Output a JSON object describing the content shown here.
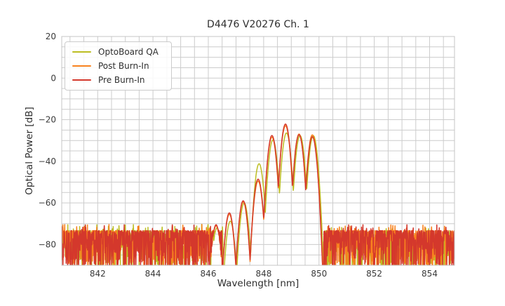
{
  "figure": {
    "background": "#ffffff",
    "text_color": "#2e2e2e",
    "grid_color": "#cccccc",
    "spine_color": "#c4c4c4"
  },
  "chart_data": {
    "type": "line",
    "title": "D4476 V20276 Ch. 1",
    "xlabel": "Wavelength [nm]",
    "ylabel": "Optical Power [dB]",
    "xlim": [
      840.7,
      854.9
    ],
    "ylim": [
      -90,
      20
    ],
    "xticks": [
      842,
      844,
      846,
      848,
      850,
      852,
      854
    ],
    "xtick_labels": [
      "842",
      "844",
      "846",
      "848",
      "850",
      "852",
      "854"
    ],
    "yticks": [
      20,
      0,
      -20,
      -40,
      -60,
      -80
    ],
    "ytick_labels": [
      "20",
      "0",
      "−20",
      "−40",
      "−60",
      "−80"
    ],
    "grid": {
      "on": true,
      "x_step": 0.5,
      "y_step": 5
    },
    "legend": {
      "position": "upper left"
    },
    "description": "Optical spectrum of a VCSEL channel: noise floor near -75 to -90 dB with longitudinal mode peaks between 846 and 850 nm; modes listed as [wavelength_nm, peak_dB].",
    "mode_width_coeff": 460,
    "mode_region": [
      846.5,
      850.16
    ],
    "noise": {
      "top": -73.3,
      "depth": 20,
      "pow": 2.2,
      "spike_prob": 0.035,
      "spike_top": -70.3,
      "step": 0.01,
      "floor_clip": -95
    },
    "series": [
      {
        "name": "OptoBoard QA",
        "color": "#bcbd22",
        "seed": 11,
        "shift": 0.035,
        "right_noise_offset": -1.4,
        "modes": [
          [
            846.28,
            -72.0
          ],
          [
            846.76,
            -68.8
          ],
          [
            847.26,
            -60.0
          ],
          [
            847.8,
            -41.2
          ],
          [
            848.3,
            -29.8
          ],
          [
            848.79,
            -26.4
          ],
          [
            849.28,
            -27.6
          ],
          [
            849.76,
            -27.7
          ]
        ]
      },
      {
        "name": "Post Burn-In",
        "color": "#f8821f",
        "seed": 22,
        "shift": 0,
        "right_noise_offset": 0,
        "modes": [
          [
            846.28,
            -71.0
          ],
          [
            846.76,
            -65.5
          ],
          [
            847.26,
            -59.5
          ],
          [
            847.8,
            -49.5
          ],
          [
            848.3,
            -28.4
          ],
          [
            848.79,
            -22.9
          ],
          [
            849.28,
            -26.9
          ],
          [
            849.76,
            -27.3
          ]
        ]
      },
      {
        "name": "Pre Burn-In",
        "color": "#d4382c",
        "seed": 33,
        "shift": 0,
        "right_noise_offset": 0,
        "modes": [
          [
            846.28,
            -70.5
          ],
          [
            846.76,
            -64.8
          ],
          [
            847.26,
            -59.0
          ],
          [
            847.8,
            -48.6
          ],
          [
            848.3,
            -27.6
          ],
          [
            848.79,
            -22.1
          ],
          [
            849.28,
            -27.2
          ],
          [
            849.76,
            -28.2
          ]
        ]
      }
    ]
  }
}
